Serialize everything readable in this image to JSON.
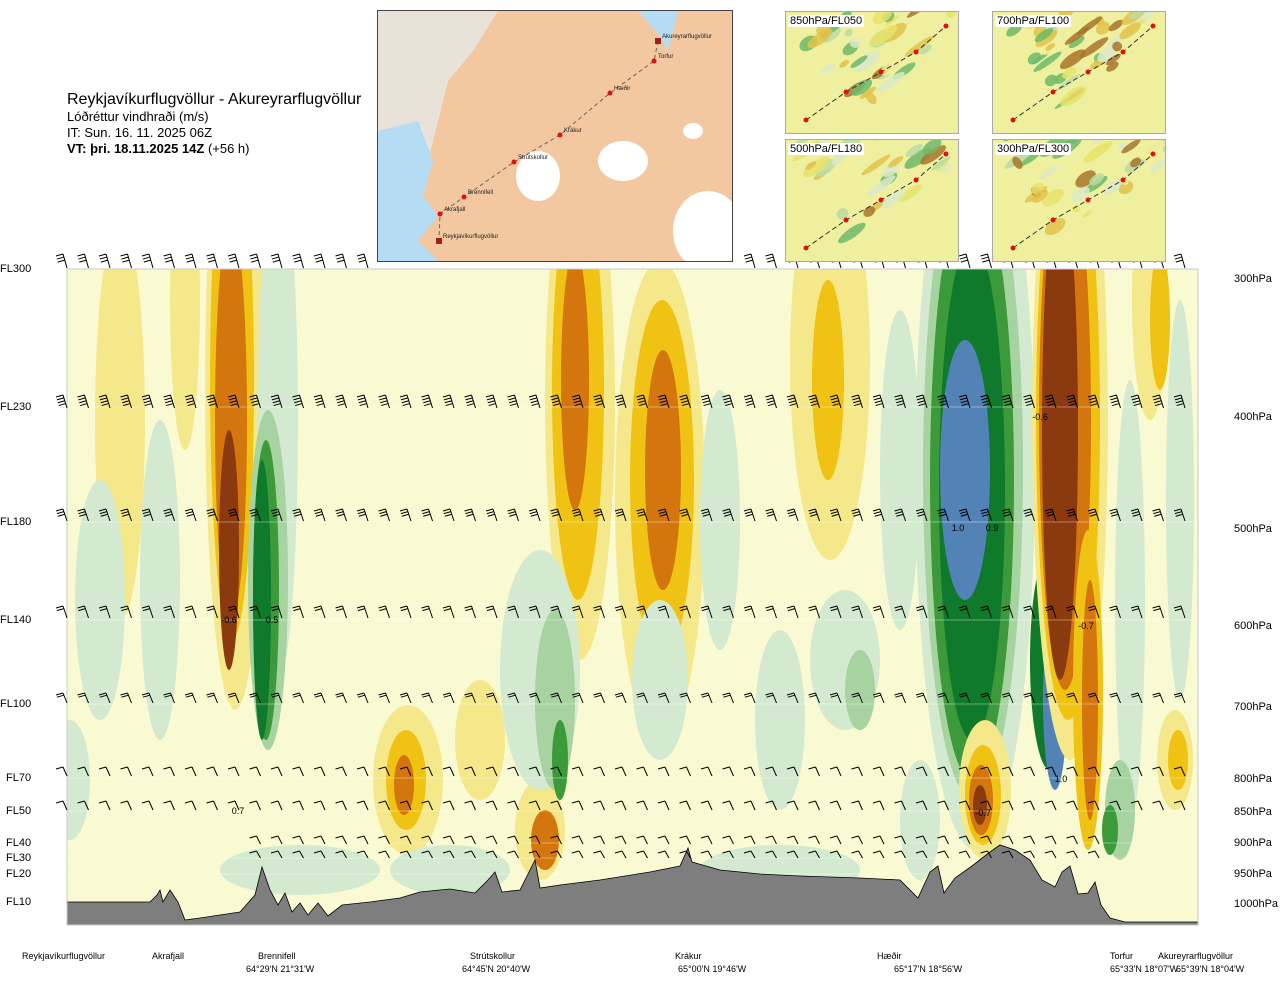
{
  "title": {
    "route": "Reykjavíkurflugvöllur - Akureyrarflugvöllur",
    "variable": "Lóðréttur vindhraði (m/s)",
    "initial_time": "IT: Sun. 16. 11. 2025 06Z",
    "valid_time": "VT: þri. 18.11.2025 14Z",
    "lead": "(+56 h)"
  },
  "route_map": {
    "waypoints": [
      "Akureyrarflugvöllur",
      "Torfur",
      "Hæðir",
      "Krákur",
      "Strútskollur",
      "Brennifell",
      "Akrafjall",
      "Reykjavíkurflugvöllur"
    ]
  },
  "insets": [
    {
      "label": "850hPa/FL050"
    },
    {
      "label": "700hPa/FL100"
    },
    {
      "label": "500hPa/FL180"
    },
    {
      "label": "300hPa/FL300"
    }
  ],
  "chart_data": {
    "type": "heatmap",
    "title": "Lóðréttur vindhraði (m/s)",
    "left_axis_flight_levels": [
      "FL300",
      "FL230",
      "FL180",
      "FL140",
      "FL100",
      "FL70",
      "FL50",
      "FL40",
      "FL30",
      "FL20",
      "FL10"
    ],
    "right_axis_pressure_levels": [
      "300hPa",
      "400hPa",
      "500hPa",
      "600hPa",
      "700hPa",
      "800hPa",
      "850hPa",
      "900hPa",
      "950hPa",
      "1000hPa"
    ],
    "ylim_hpa": [
      1000,
      300
    ],
    "x_locations": [
      {
        "name": "Reykjavíkurflugvöllur",
        "coord": ""
      },
      {
        "name": "Akrafjall",
        "coord": ""
      },
      {
        "name": "Brennifell",
        "coord": "64°29'N 21°31'W"
      },
      {
        "name": "Strútskollur",
        "coord": "64°45'N 20°40'W"
      },
      {
        "name": "Krákur",
        "coord": "65°00'N 19°46'W"
      },
      {
        "name": "Hæðir",
        "coord": "65°17'N 18°56'W"
      },
      {
        "name": "Torfur",
        "coord": "65°33'N 18°07'W"
      },
      {
        "name": "Akureyrarflugvöllur",
        "coord": "65°39'N 18°04'W"
      }
    ],
    "annotations": [
      {
        "text": "-0.6",
        "near": "Brennifell",
        "level": "FL140"
      },
      {
        "text": "0.5",
        "near": "Brennifell",
        "level": "FL140"
      },
      {
        "text": "0.7",
        "near": "Brennifell",
        "level": "FL50"
      },
      {
        "text": "1.0",
        "near": "Hæðir",
        "level": "FL180"
      },
      {
        "text": "0.9",
        "near": "Hæðir",
        "level": "FL180"
      },
      {
        "text": "-0.6",
        "near": "Torfur",
        "level": "FL230"
      },
      {
        "text": "-0.7",
        "near": "Torfur",
        "level": "FL140"
      },
      {
        "text": "1.0",
        "near": "Torfur",
        "level": "FL70"
      },
      {
        "text": "-0.7",
        "near": "Hæðir",
        "level": "FL50"
      }
    ],
    "color_scale": {
      "strong_down": "#8b3a10",
      "down_2": "#d4760e",
      "down_1": "#f0c214",
      "weak_down": "#f4e88a",
      "neutral": "#fafad2",
      "weak_up": "#d3ead0",
      "up_1": "#a6d3a0",
      "up_2": "#3d9a3a",
      "up_3": "#0f7a2c",
      "strong_up": "#5282b6"
    },
    "terrain_color": "#7e7e7e",
    "grid": true
  }
}
